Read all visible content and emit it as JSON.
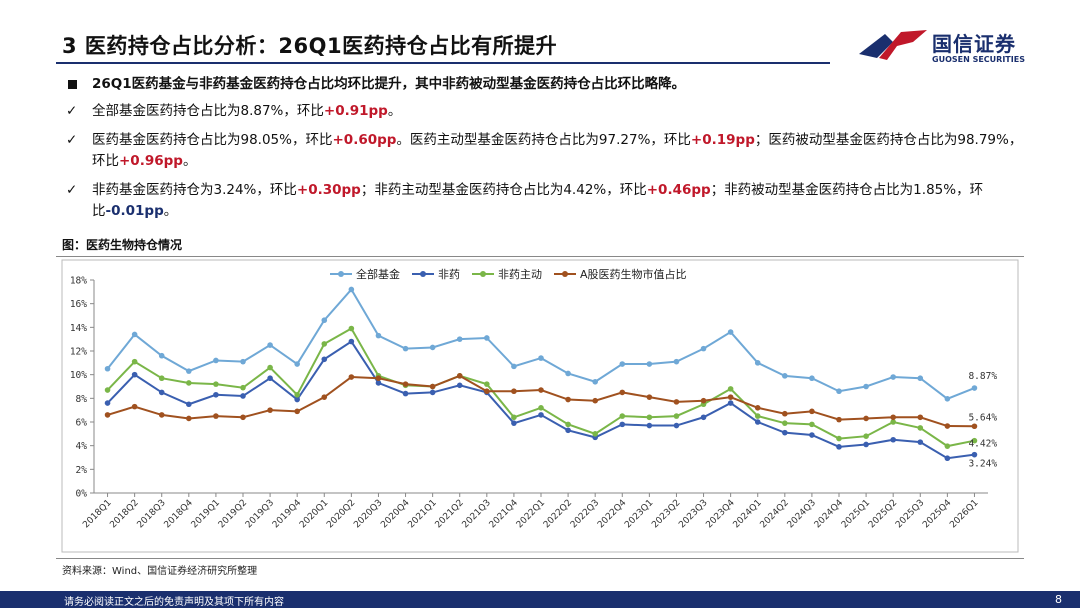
{
  "header": {
    "title": "3 医药持仓占比分析：26Q1医药持仓占比有所提升",
    "logo_cn": "国信证券",
    "logo_en": "GUOSEN SECURITIES"
  },
  "bullets": {
    "main": "26Q1医药基金与非药基金医药持仓占比均环比提升，其中非药被动型基金医药持仓占比环比略降。",
    "b1_a": "全部基金医药持仓占比为8.87%，环比",
    "b1_v": "+0.91pp",
    "b1_b": "。",
    "b2_a": "医药基金医药持仓占比为98.05%，环比",
    "b2_v1": "+0.60pp",
    "b2_b": "。医药主动型基金医药持仓占比为97.27%，环比",
    "b2_v2": "+0.19pp",
    "b2_c": "；医药被动型基金医药持仓占比为98.79%，环比",
    "b2_v3": "+0.96pp",
    "b2_d": "。",
    "b3_a": "非药基金医药持仓为3.24%，环比",
    "b3_v1": "+0.30pp",
    "b3_b": "；非药主动型基金医药持仓占比为4.42%，环比",
    "b3_v2": "+0.46pp",
    "b3_c": "；非药被动型基金医药持仓占比为1.85%，环比",
    "b3_v3": "-0.01pp",
    "b3_d": "。",
    "check": "✓",
    "square": "■"
  },
  "figure": {
    "caption": "图：医药生物持仓情况",
    "source": "资料来源：Wind、国信证券经济研究所整理"
  },
  "footer": {
    "disclaimer": "请务必阅读正文之后的免责声明及其项下所有内容",
    "page": "8"
  },
  "colors": {
    "brand": "#1a2f6e",
    "accent_red": "#c0182a",
    "series_all": "#6fa8d6",
    "series_nonpharma": "#3a5fb0",
    "series_active": "#7ab648",
    "series_market": "#a0511f"
  },
  "chart_data": {
    "type": "line",
    "title": "",
    "xlabel": "",
    "ylabel": "",
    "ylim": [
      0,
      18
    ],
    "yticks": [
      "0%",
      "2%",
      "4%",
      "6%",
      "8%",
      "10%",
      "12%",
      "14%",
      "16%",
      "18%"
    ],
    "legend_position": "top",
    "grid": false,
    "categories": [
      "2018Q1",
      "2018Q2",
      "2018Q3",
      "2018Q4",
      "2019Q1",
      "2019Q2",
      "2019Q3",
      "2019Q4",
      "2020Q1",
      "2020Q2",
      "2020Q3",
      "2020Q4",
      "2021Q1",
      "2021Q2",
      "2021Q3",
      "2021Q4",
      "2022Q1",
      "2022Q2",
      "2022Q3",
      "2022Q4",
      "2023Q1",
      "2023Q2",
      "2023Q3",
      "2023Q4",
      "2024Q1",
      "2024Q2",
      "2024Q3",
      "2024Q4",
      "2025Q1",
      "2025Q2",
      "2025Q3",
      "2025Q4",
      "2026Q1"
    ],
    "series": [
      {
        "name": "全部基金",
        "color": "#6fa8d6",
        "end_label": "8.87%",
        "values": [
          10.5,
          13.4,
          11.6,
          10.3,
          11.2,
          11.1,
          12.5,
          10.9,
          14.6,
          17.2,
          13.3,
          12.2,
          12.3,
          13.0,
          13.1,
          10.7,
          11.4,
          10.1,
          9.4,
          10.9,
          10.9,
          11.1,
          12.2,
          13.6,
          11.0,
          9.9,
          9.7,
          8.6,
          9.0,
          9.8,
          9.7,
          7.96,
          8.87
        ]
      },
      {
        "name": "非药",
        "color": "#3a5fb0",
        "end_label": "3.24%",
        "values": [
          7.6,
          10.0,
          8.5,
          7.5,
          8.3,
          8.2,
          9.7,
          7.9,
          11.3,
          12.8,
          9.3,
          8.4,
          8.5,
          9.1,
          8.5,
          5.9,
          6.6,
          5.3,
          4.7,
          5.8,
          5.7,
          5.7,
          6.4,
          7.6,
          6.0,
          5.1,
          4.9,
          3.9,
          4.1,
          4.5,
          4.3,
          2.94,
          3.24
        ]
      },
      {
        "name": "非药主动",
        "color": "#7ab648",
        "end_label": "4.42%",
        "values": [
          8.7,
          11.1,
          9.7,
          9.3,
          9.2,
          8.9,
          10.6,
          8.3,
          12.6,
          13.9,
          9.9,
          9.1,
          9.0,
          9.9,
          9.2,
          6.4,
          7.2,
          5.8,
          5.0,
          6.5,
          6.4,
          6.5,
          7.5,
          8.8,
          6.5,
          5.9,
          5.8,
          4.6,
          4.8,
          6.0,
          5.5,
          3.96,
          4.42
        ]
      },
      {
        "name": "A股医药生物市值占比",
        "color": "#a0511f",
        "end_label": "5.64%",
        "values": [
          6.6,
          7.3,
          6.6,
          6.3,
          6.5,
          6.4,
          7.0,
          6.9,
          8.1,
          9.8,
          9.7,
          9.2,
          9.0,
          9.9,
          8.6,
          8.6,
          8.7,
          7.9,
          7.8,
          8.5,
          8.1,
          7.7,
          7.8,
          8.1,
          7.2,
          6.7,
          6.9,
          6.2,
          6.3,
          6.4,
          6.4,
          5.66,
          5.64
        ]
      }
    ]
  }
}
